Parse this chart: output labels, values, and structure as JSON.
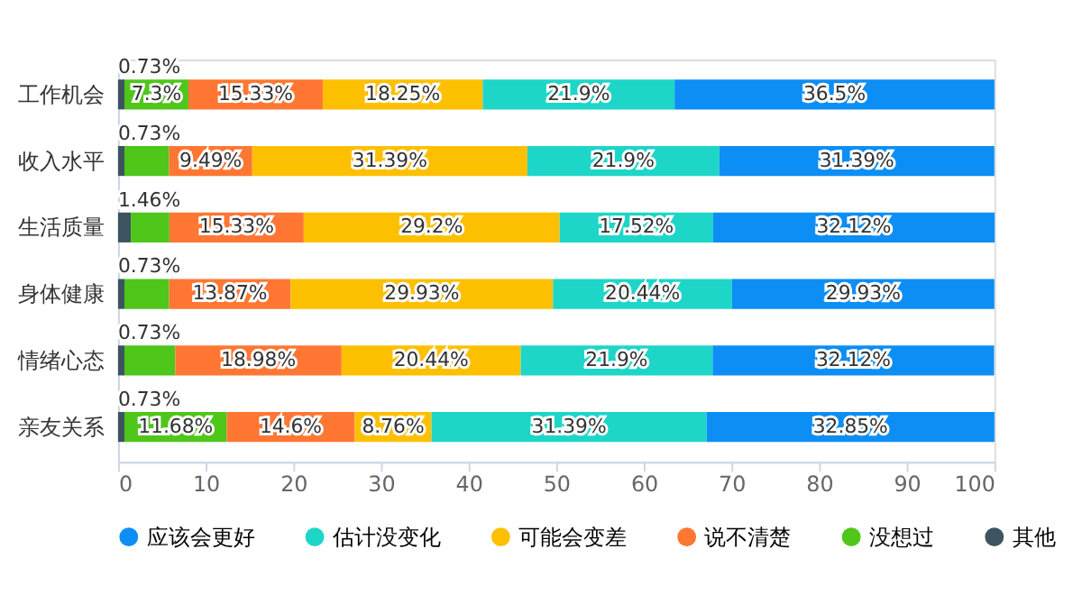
{
  "chart_data": {
    "type": "bar",
    "orientation": "horizontal",
    "stacked": true,
    "categories": [
      "工作机会",
      "收入水平",
      "生活质量",
      "身体健康",
      "情绪心态",
      "亲友关系"
    ],
    "series": [
      {
        "name": "其他",
        "color": "#3d5360",
        "values": [
          0.73,
          0.73,
          1.46,
          0.73,
          0.73,
          0.73
        ],
        "value_labels": [
          "0.73%",
          "0.73%",
          "1.46%",
          "0.73%",
          "0.73%",
          "0.73%"
        ]
      },
      {
        "name": "没想过",
        "color": "#4fc61a",
        "values": [
          7.3,
          5.1,
          4.4,
          5.1,
          5.8,
          11.68
        ],
        "value_labels": [
          "7.3%",
          null,
          null,
          null,
          null,
          "11.68%"
        ]
      },
      {
        "name": "说不清楚",
        "color": "#ff7733",
        "values": [
          15.33,
          9.49,
          15.33,
          13.87,
          18.98,
          14.6
        ],
        "value_labels": [
          "15.33%",
          "9.49%",
          "15.33%",
          "13.87%",
          "18.98%",
          "14.6%"
        ]
      },
      {
        "name": "可能会变差",
        "color": "#fdc000",
        "values": [
          18.25,
          31.39,
          29.2,
          29.93,
          20.44,
          8.76
        ],
        "value_labels": [
          "18.25%",
          "31.39%",
          "29.2%",
          "29.93%",
          "20.44%",
          "8.76%"
        ]
      },
      {
        "name": "估计没变化",
        "color": "#1dd6c8",
        "values": [
          21.9,
          21.9,
          17.52,
          20.44,
          21.9,
          31.39
        ],
        "value_labels": [
          "21.9%",
          "21.9%",
          "17.52%",
          "20.44%",
          "21.9%",
          "31.39%"
        ]
      },
      {
        "name": "应该会更好",
        "color": "#0d8ef5",
        "values": [
          36.5,
          31.39,
          32.12,
          29.93,
          32.12,
          32.85
        ],
        "value_labels": [
          "36.5%",
          "31.39%",
          "32.12%",
          "29.93%",
          "32.12%",
          "32.85%"
        ]
      }
    ],
    "xlim": [
      0,
      100
    ],
    "xticks": [
      0,
      10,
      20,
      30,
      40,
      50,
      60,
      70,
      80,
      90,
      100
    ],
    "grid": false,
    "legend": "bottom"
  }
}
